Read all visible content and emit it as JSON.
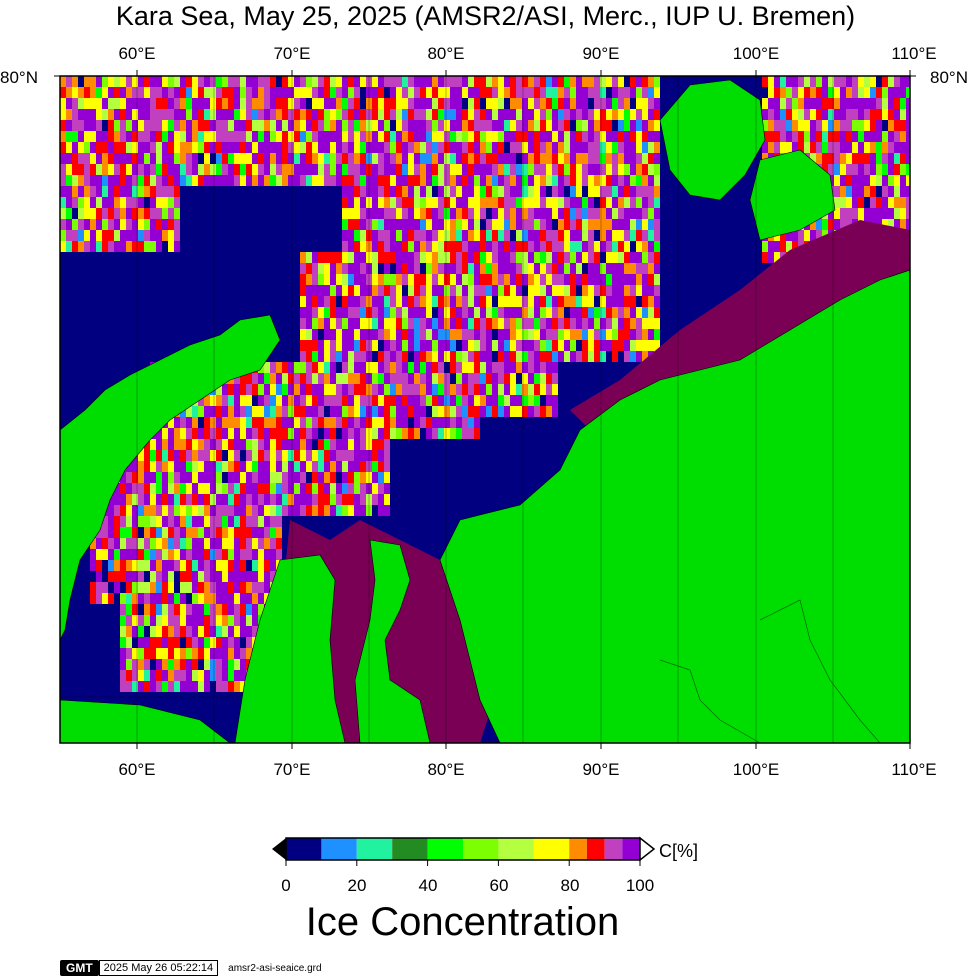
{
  "title": "Kara Sea, May 25, 2025 (AMSR2/ASI, Merc., IUP U. Bremen)",
  "lon_ticks": [
    "60°E",
    "70°E",
    "80°E",
    "90°E",
    "100°E",
    "110°E"
  ],
  "lat_label_left": "80°N",
  "lat_label_right": "80°N",
  "colorbar": {
    "ticks": [
      "0",
      "20",
      "40",
      "60",
      "80",
      "100"
    ],
    "unit": "C[%]",
    "colors": [
      "#000080",
      "#1e90ff",
      "#20f2a0",
      "#228b22",
      "#00ff00",
      "#7cff00",
      "#b4ff40",
      "#ffff00",
      "#ff8c00",
      "#ff0000",
      "#c040c0",
      "#9400d3"
    ]
  },
  "legend_title": "Ice Concentration",
  "footer": {
    "logo": "GMT",
    "timestamp": "2025 May 26 05:22:14",
    "file": "amsr2-asi-seaice.grd"
  },
  "colors": {
    "ocean": "#000080",
    "land": "#00dd00",
    "landfast": "#7a0055"
  }
}
